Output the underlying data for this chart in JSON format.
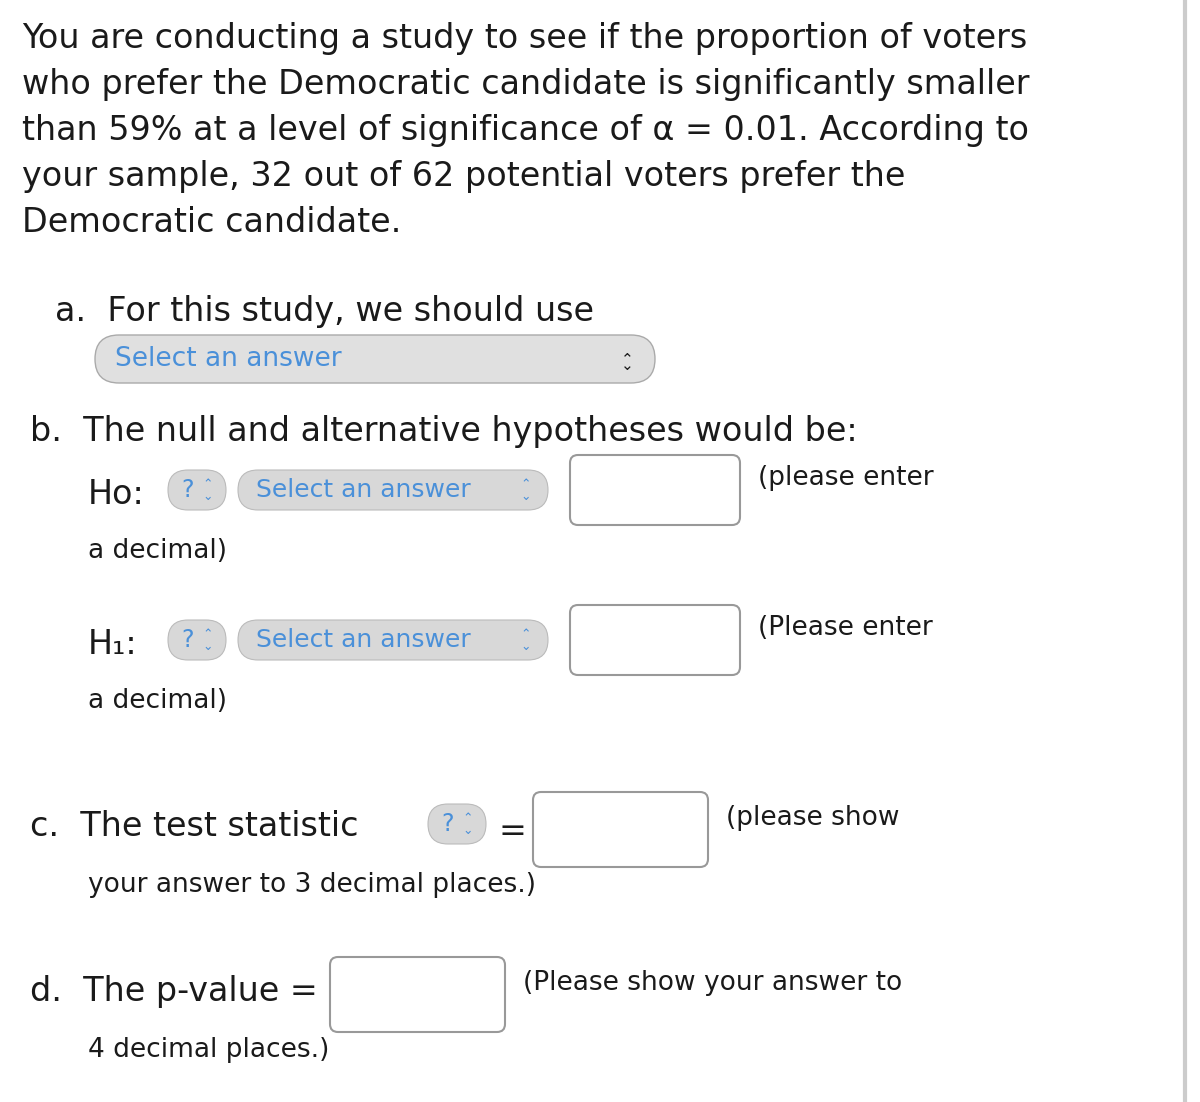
{
  "bg_color": "#ffffff",
  "text_color": "#1a1a1a",
  "blue_color": "#4a90d9",
  "gray_bg": "#e0e0e0",
  "border_color": "#aaaaaa",
  "paragraph_lines": [
    "You are conducting a study to see if the proportion of voters",
    "who prefer the Democratic candidate is significantly smaller",
    "than 59% at a level of significance of α = 0.01. According to",
    "your sample, 32 out of 62 potential voters prefer the",
    "Democratic candidate."
  ],
  "part_a_label": "a.  For this study, we should use",
  "select_answer_a": "Select an answer",
  "part_b_label": "b.  The null and alternative hypotheses would be:",
  "ho_label": "Ho:",
  "h1_label": "H₁:",
  "question_mark": "?",
  "select_answer_b": "Select an answer",
  "part_c_label": "c.  The test statistic",
  "part_d_label": "d.  The p-value =",
  "font_size_para": 24,
  "font_size_label": 24,
  "font_size_dropdown": 19,
  "font_size_small": 19,
  "right_bar_color": "#cccccc"
}
